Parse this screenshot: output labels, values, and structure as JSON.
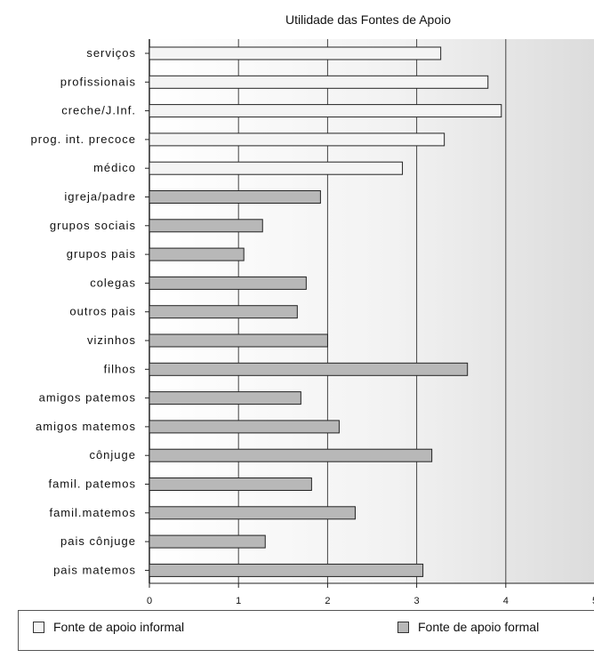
{
  "chart_data": {
    "type": "bar",
    "orientation": "horizontal",
    "title": "Utilidade das Fontes de Apoio",
    "categories": [
      "serviços",
      "profissionais",
      "creche/J.Inf.",
      "prog. int. precoce",
      "médico",
      "igreja/padre",
      "grupos sociais",
      "grupos pais",
      "colegas",
      "outros pais",
      "vizinhos",
      "filhos",
      "amigos paternos",
      "amigos maternos",
      "cônjuge",
      "famil. paternos",
      "famil.maternos",
      "pais cônjuge",
      "pais maternos"
    ],
    "category_labels": [
      "serviços",
      "profissionais",
      "creche/J.Inf.",
      "prog. int. precoce",
      "médico",
      "igreja/padre",
      "grupos sociais",
      "grupos pais",
      "colegas",
      "outros pais",
      "vizinhos",
      "filhos",
      "amigos patemos",
      "amigos matemos",
      "cônjuge",
      "famil. patemos",
      "famil.matemos",
      "pais cônjuge",
      "pais matemos"
    ],
    "values": [
      3.27,
      3.8,
      3.95,
      3.31,
      2.84,
      1.92,
      1.27,
      1.06,
      1.76,
      1.66,
      2.0,
      3.57,
      1.7,
      2.13,
      3.17,
      1.82,
      2.31,
      1.3,
      3.07
    ],
    "groups": [
      "informal",
      "informal",
      "informal",
      "informal",
      "informal",
      "formal",
      "formal",
      "formal",
      "formal",
      "formal",
      "formal",
      "formal",
      "formal",
      "formal",
      "formal",
      "formal",
      "formal",
      "formal",
      "formal"
    ],
    "series": [
      {
        "name": "Fonte de apoio informal",
        "key": "informal",
        "color": "#f4f4f4"
      },
      {
        "name": "Fonte de apoio formal",
        "key": "formal",
        "color": "#b8b8b8"
      }
    ],
    "xticks": [
      "0",
      "1",
      "2",
      "3",
      "4",
      "5"
    ],
    "xlim": [
      0,
      5
    ],
    "grid": true,
    "legend_position": "bottom"
  },
  "legend": {
    "informal_label": "Fonte de apoio informal",
    "formal_label": "Fonte de apoio formal"
  }
}
